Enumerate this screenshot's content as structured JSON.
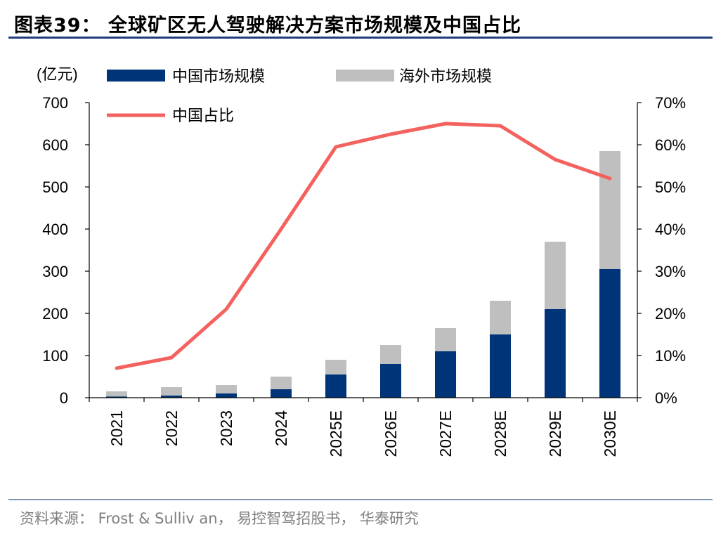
{
  "figure_title": "图表39：  全球矿区无人驾驶解决方案市场规模及中国占比",
  "source": "资料来源：  Frost & Sulliv an， 易控智驾招股书， 华泰研究",
  "colors": {
    "china": "#003478",
    "overseas": "#bfbfbf",
    "share": "#f4625f",
    "title_rule": "#1f3f7a"
  },
  "chart_data": {
    "type": "bar",
    "stacked": true,
    "unit_label": "(亿元)",
    "categories": [
      "2021",
      "2022",
      "2023",
      "2024",
      "2025E",
      "2026E",
      "2027E",
      "2028E",
      "2029E",
      "2030E"
    ],
    "series": [
      {
        "name": "中国市场规模",
        "kind": "bar",
        "values": [
          3,
          5,
          10,
          20,
          55,
          80,
          110,
          150,
          210,
          305
        ]
      },
      {
        "name": "海外市场规模",
        "kind": "bar",
        "values": [
          12,
          20,
          20,
          30,
          35,
          45,
          55,
          80,
          160,
          280
        ]
      },
      {
        "name": "中国占比",
        "kind": "line",
        "axis": "right",
        "values": [
          7,
          9.5,
          21,
          40,
          59.5,
          62.5,
          65,
          64.5,
          56.5,
          52
        ]
      }
    ],
    "y_left": {
      "min": 0,
      "max": 700,
      "ticks": [
        "0",
        "100",
        "200",
        "300",
        "400",
        "500",
        "600",
        "700"
      ]
    },
    "y_right": {
      "min": 0,
      "max": 70,
      "ticks": [
        "0%",
        "10%",
        "20%",
        "30%",
        "40%",
        "50%",
        "60%",
        "70%"
      ]
    },
    "legend_position": "top"
  }
}
